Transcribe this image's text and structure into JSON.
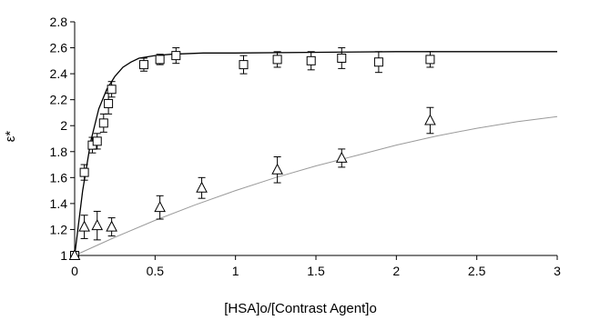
{
  "chart_data": {
    "type": "scatter",
    "xlabel": "[HSA]o/[Contrast Agent]o",
    "ylabel": "ε*",
    "xlim": [
      0,
      3
    ],
    "ylim": [
      1,
      2.8
    ],
    "x_ticks": [
      "0",
      "0.5",
      "1",
      "1.5",
      "2",
      "2.5",
      "3"
    ],
    "y_ticks": [
      "1",
      "1.2",
      "1.4",
      "1.6",
      "1.8",
      "2",
      "2.2",
      "2.4",
      "2.6",
      "2.8"
    ],
    "grid": false,
    "legend": "none",
    "series": [
      {
        "marker": "square",
        "points": [
          {
            "x": 0.0,
            "y": 1.0,
            "err": 0.0
          },
          {
            "x": 0.06,
            "y": 1.64,
            "err": 0.06
          },
          {
            "x": 0.11,
            "y": 1.85,
            "err": 0.06
          },
          {
            "x": 0.14,
            "y": 1.88,
            "err": 0.06
          },
          {
            "x": 0.18,
            "y": 2.02,
            "err": 0.07
          },
          {
            "x": 0.21,
            "y": 2.17,
            "err": 0.08
          },
          {
            "x": 0.23,
            "y": 2.28,
            "err": 0.06
          },
          {
            "x": 0.43,
            "y": 2.47,
            "err": 0.05
          },
          {
            "x": 0.53,
            "y": 2.51,
            "err": 0.04
          },
          {
            "x": 0.63,
            "y": 2.54,
            "err": 0.06
          },
          {
            "x": 1.05,
            "y": 2.47,
            "err": 0.07
          },
          {
            "x": 1.26,
            "y": 2.51,
            "err": 0.06
          },
          {
            "x": 1.47,
            "y": 2.5,
            "err": 0.07
          },
          {
            "x": 1.66,
            "y": 2.52,
            "err": 0.08
          },
          {
            "x": 1.89,
            "y": 2.49,
            "err": 0.08
          },
          {
            "x": 2.21,
            "y": 2.51,
            "err": 0.06
          }
        ],
        "fit": [
          [
            0,
            1.0
          ],
          [
            0.05,
            1.5
          ],
          [
            0.1,
            1.88
          ],
          [
            0.15,
            2.13
          ],
          [
            0.2,
            2.28
          ],
          [
            0.25,
            2.38
          ],
          [
            0.3,
            2.45
          ],
          [
            0.35,
            2.49
          ],
          [
            0.4,
            2.52
          ],
          [
            0.5,
            2.54
          ],
          [
            0.6,
            2.55
          ],
          [
            0.8,
            2.56
          ],
          [
            1.0,
            2.56
          ],
          [
            2.0,
            2.57
          ],
          [
            3.0,
            2.57
          ]
        ]
      },
      {
        "marker": "triangle",
        "points": [
          {
            "x": 0.0,
            "y": 1.0,
            "err": 0.0
          },
          {
            "x": 0.06,
            "y": 1.22,
            "err": 0.09
          },
          {
            "x": 0.14,
            "y": 1.23,
            "err": 0.11
          },
          {
            "x": 0.23,
            "y": 1.22,
            "err": 0.07
          },
          {
            "x": 0.53,
            "y": 1.37,
            "err": 0.09
          },
          {
            "x": 0.79,
            "y": 1.52,
            "err": 0.08
          },
          {
            "x": 1.26,
            "y": 1.66,
            "err": 0.1
          },
          {
            "x": 1.66,
            "y": 1.75,
            "err": 0.07
          },
          {
            "x": 2.21,
            "y": 2.04,
            "err": 0.1
          }
        ],
        "fit": [
          [
            0,
            1.0
          ],
          [
            0.25,
            1.14
          ],
          [
            0.5,
            1.27
          ],
          [
            0.75,
            1.39
          ],
          [
            1.0,
            1.5
          ],
          [
            1.25,
            1.6
          ],
          [
            1.5,
            1.69
          ],
          [
            1.75,
            1.77
          ],
          [
            2.0,
            1.85
          ],
          [
            2.25,
            1.92
          ],
          [
            2.5,
            1.98
          ],
          [
            2.75,
            2.03
          ],
          [
            3.0,
            2.07
          ]
        ]
      }
    ]
  }
}
